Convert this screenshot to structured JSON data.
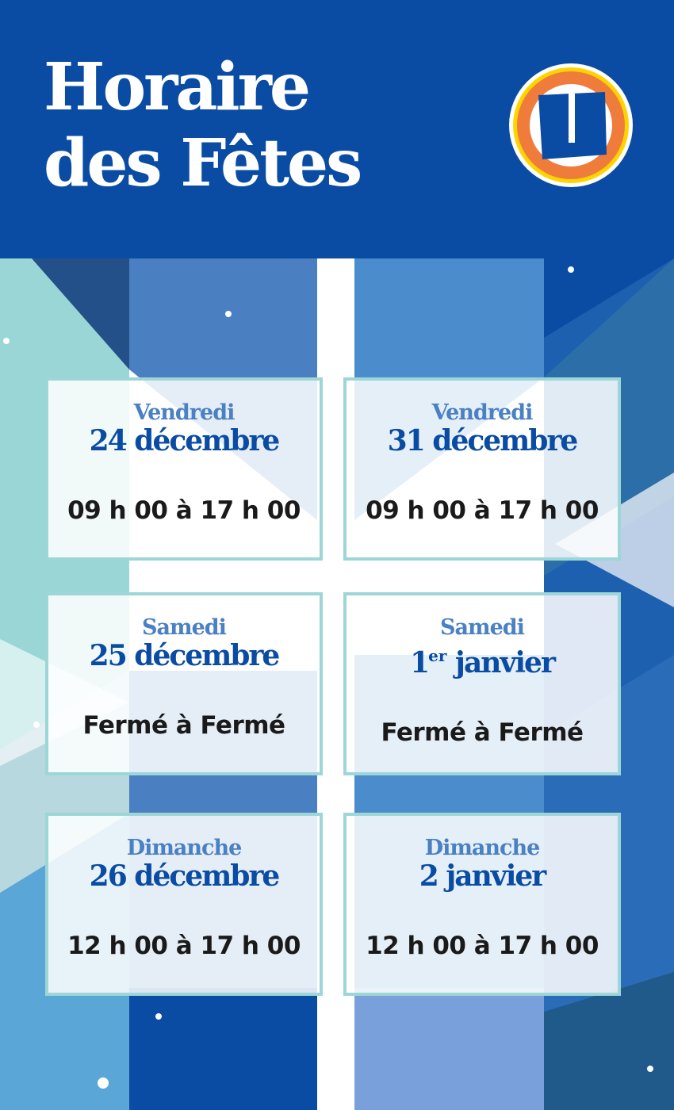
{
  "header": {
    "title_line1": "Horaire",
    "title_line2": "des Fêtes",
    "logo": "U-logo",
    "background_color": "#0a4ca3"
  },
  "colors": {
    "day": "#4a80c4",
    "date": "#0a4ca3",
    "hours": "#1a1a1a",
    "card_border": "#9dd6d6",
    "logo_orange": "#f07c3c",
    "logo_yellow": "#ffd400"
  },
  "schedule": [
    {
      "day": "Vendredi",
      "date": "24 décembre",
      "hours": "09 h 00 à 17 h 00"
    },
    {
      "day": "Vendredi",
      "date": "31 décembre",
      "hours": "09 h 00 à 17 h 00"
    },
    {
      "day": "Samedi",
      "date": "25 décembre",
      "hours": "Fermé à Fermé"
    },
    {
      "day": "Samedi",
      "date_num": "1",
      "date_sup": "er",
      "date_rest": " janvier",
      "hours": "Fermé à Fermé"
    },
    {
      "day": "Dimanche",
      "date": "26 décembre",
      "hours": "12 h 00 à 17 h 00"
    },
    {
      "day": "Dimanche",
      "date": "2 janvier",
      "hours": "12 h 00 à 17 h 00"
    }
  ]
}
